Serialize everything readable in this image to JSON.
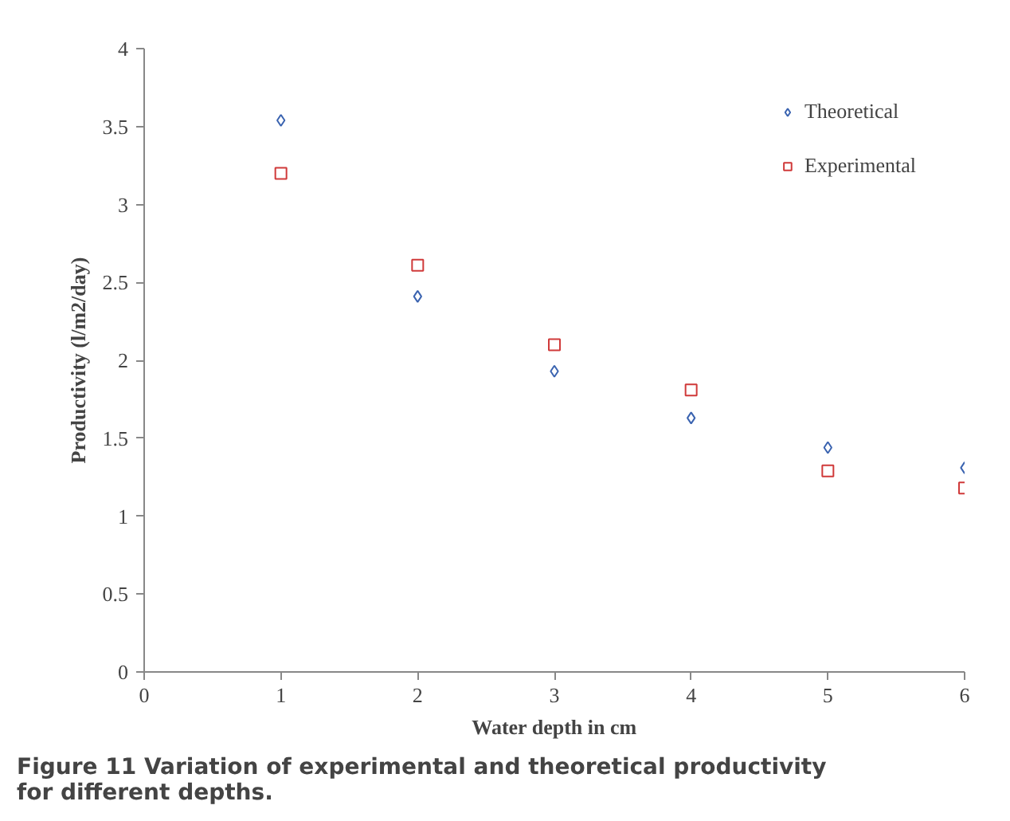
{
  "chart_data": {
    "type": "scatter",
    "xlabel": "Water depth in cm",
    "ylabel": "Productivity (l/m2/day)",
    "x": [
      1,
      2,
      3,
      4,
      5,
      6
    ],
    "series": [
      {
        "name": "Theoretical",
        "color": "#3a63b0",
        "marker": "diamond",
        "values": [
          3.54,
          2.41,
          1.93,
          1.63,
          1.44,
          1.31
        ]
      },
      {
        "name": "Experimental",
        "color": "#d03a3a",
        "marker": "square",
        "values": [
          3.2,
          2.61,
          2.1,
          1.81,
          1.29,
          1.18
        ]
      }
    ],
    "xlim": [
      0,
      6
    ],
    "ylim": [
      0,
      4
    ],
    "xticks": [
      0,
      1,
      2,
      3,
      4,
      5,
      6
    ],
    "yticks": [
      0,
      0.5,
      1,
      1.5,
      2,
      2.5,
      3,
      3.5,
      4
    ],
    "grid": false,
    "legend": "top right",
    "annotations": [
      "Figure 11 Variation of experimental and theoretical productivity\nfor different depths."
    ]
  }
}
